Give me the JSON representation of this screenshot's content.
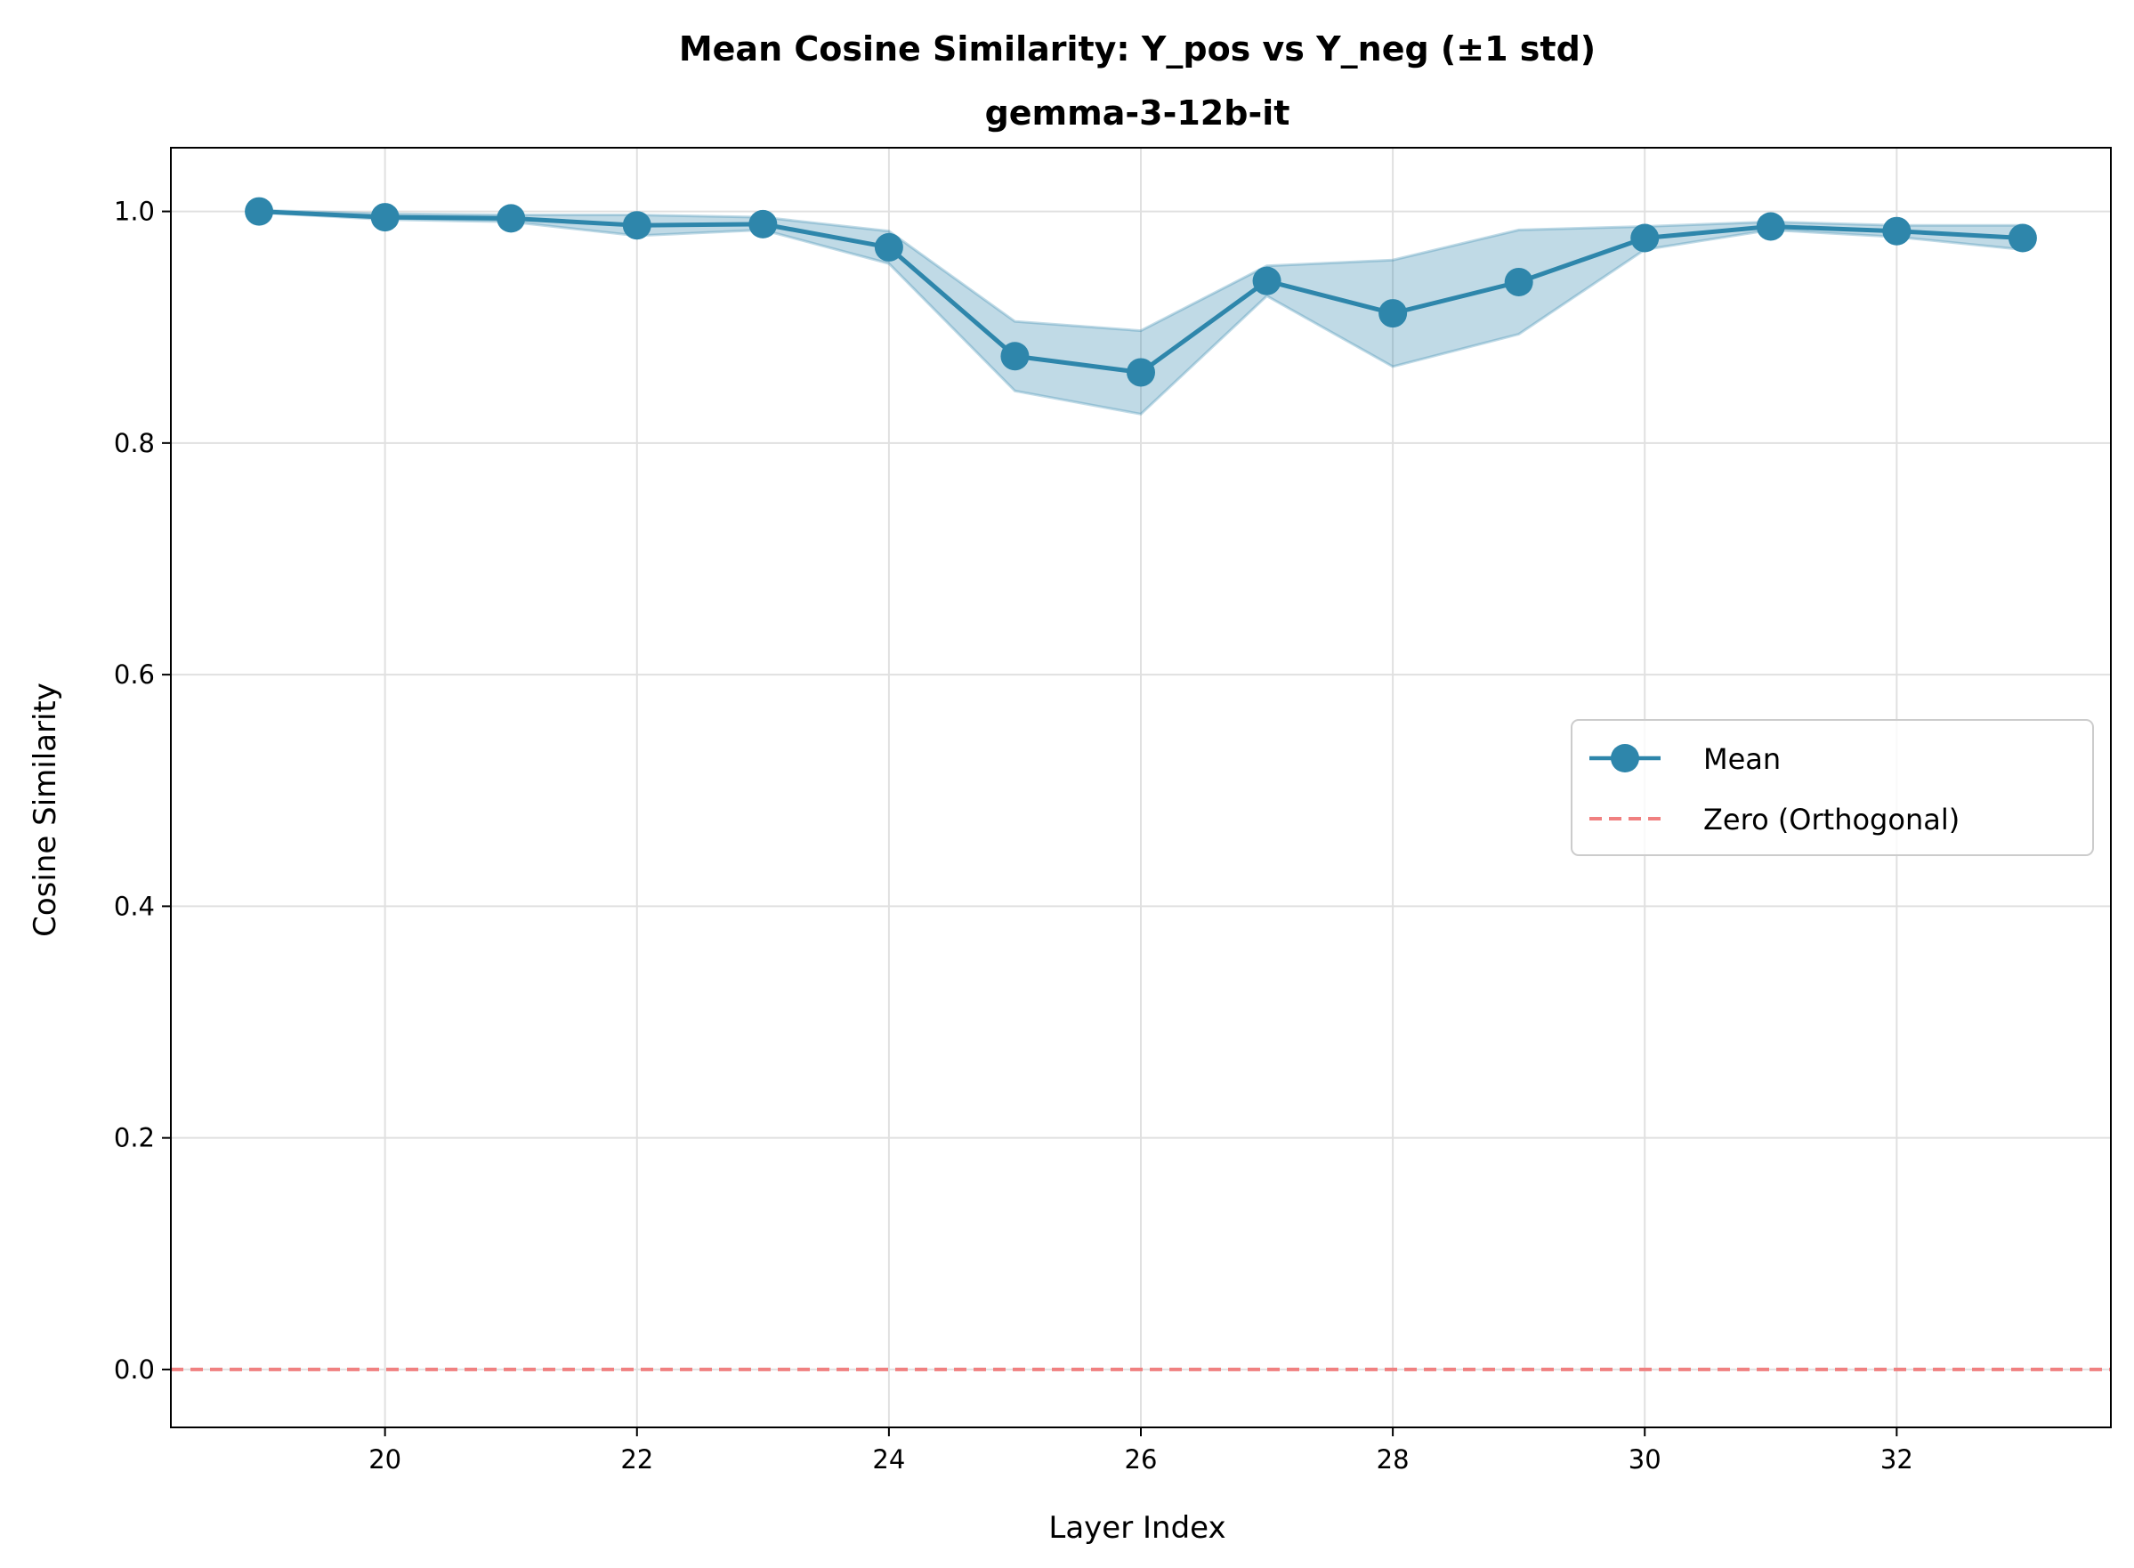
{
  "chart_data": {
    "type": "line",
    "title": "Mean Cosine Similarity: Y_pos vs Y_neg (±1 std)",
    "subtitle": "gemma-3-12b-it",
    "xlabel": "Layer Index",
    "ylabel": "Cosine Similarity",
    "xlim": [
      18.3,
      33.7
    ],
    "ylim": [
      -0.05,
      1.055
    ],
    "xticks": [
      20,
      22,
      24,
      26,
      28,
      30,
      32
    ],
    "xtick_labels": [
      "20",
      "22",
      "24",
      "26",
      "28",
      "30",
      "32"
    ],
    "yticks": [
      0.0,
      0.2,
      0.4,
      0.6,
      0.8,
      1.0
    ],
    "ytick_labels": [
      "0.0",
      "0.2",
      "0.4",
      "0.6",
      "0.8",
      "1.0"
    ],
    "grid": true,
    "legend_position": "center-right",
    "series": [
      {
        "name": "Mean",
        "color": "#2e86ab",
        "marker": "circle",
        "x": [
          19,
          20,
          21,
          22,
          23,
          24,
          25,
          26,
          27,
          28,
          29,
          30,
          31,
          32,
          33
        ],
        "values": [
          1.0,
          0.995,
          0.994,
          0.988,
          0.989,
          0.969,
          0.875,
          0.861,
          0.94,
          0.912,
          0.939,
          0.977,
          0.987,
          0.983,
          0.977
        ],
        "lower": [
          0.999,
          0.993,
          0.991,
          0.979,
          0.984,
          0.955,
          0.845,
          0.825,
          0.927,
          0.866,
          0.894,
          0.967,
          0.984,
          0.978,
          0.967
        ],
        "upper": [
          1.001,
          0.998,
          0.997,
          0.997,
          0.995,
          0.983,
          0.905,
          0.897,
          0.953,
          0.958,
          0.984,
          0.987,
          0.991,
          0.988,
          0.988
        ]
      },
      {
        "name": "Zero (Orthogonal)",
        "color": "#f08080",
        "style": "dashed",
        "y": 0.0
      }
    ]
  }
}
